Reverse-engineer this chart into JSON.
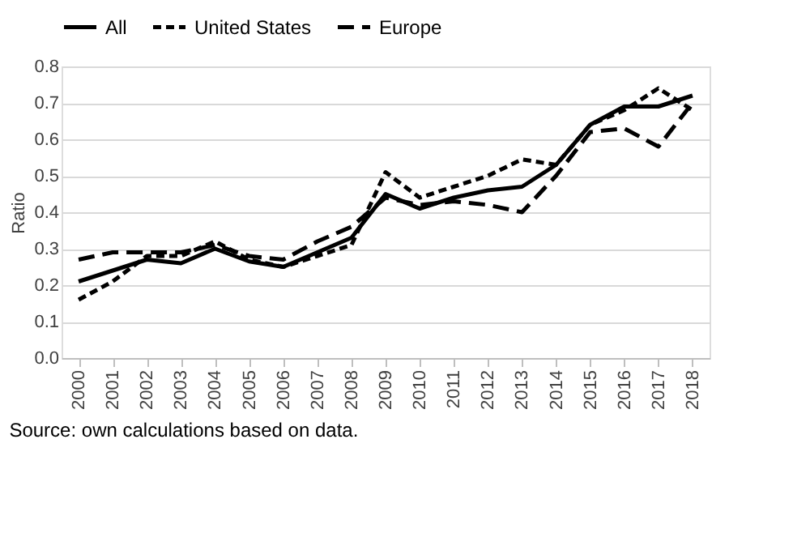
{
  "chart_data": {
    "type": "line",
    "ylabel": "Ratio",
    "categories": [
      "2000",
      "2001",
      "2002",
      "2003",
      "2004",
      "2005",
      "2006",
      "2007",
      "2008",
      "2009",
      "2010",
      "2011",
      "2012",
      "2013",
      "2014",
      "2015",
      "2016",
      "2017",
      "2018"
    ],
    "series": [
      {
        "name": "All",
        "color": "#000000",
        "line_style": "solid",
        "values": [
          0.21,
          0.24,
          0.27,
          0.26,
          0.3,
          0.265,
          0.25,
          0.29,
          0.33,
          0.45,
          0.41,
          0.44,
          0.46,
          0.47,
          0.53,
          0.64,
          0.69,
          0.69,
          0.72
        ]
      },
      {
        "name": "United States",
        "color": "#000000",
        "line_style": "dotted",
        "values": [
          0.16,
          0.21,
          0.28,
          0.28,
          0.32,
          0.27,
          0.25,
          0.28,
          0.31,
          0.51,
          0.44,
          0.47,
          0.5,
          0.545,
          0.53,
          0.64,
          0.68,
          0.74,
          0.68
        ]
      },
      {
        "name": "Europe",
        "color": "#000000",
        "line_style": "dashed",
        "values": [
          0.27,
          0.29,
          0.29,
          0.29,
          0.31,
          0.28,
          0.27,
          0.32,
          0.36,
          0.44,
          0.42,
          0.43,
          0.42,
          0.4,
          0.5,
          0.62,
          0.63,
          0.58,
          0.7
        ]
      }
    ],
    "ylim": [
      0,
      0.8
    ],
    "yticks": [
      {
        "value": 0,
        "label": "0.0"
      },
      0.1,
      0.2,
      0.3,
      0.4,
      0.5,
      0.6,
      0.7,
      0.8
    ],
    "grid": "y",
    "legend": "top",
    "marker": "none",
    "annotations": [
      "Source: own calculations based on data."
    ]
  }
}
